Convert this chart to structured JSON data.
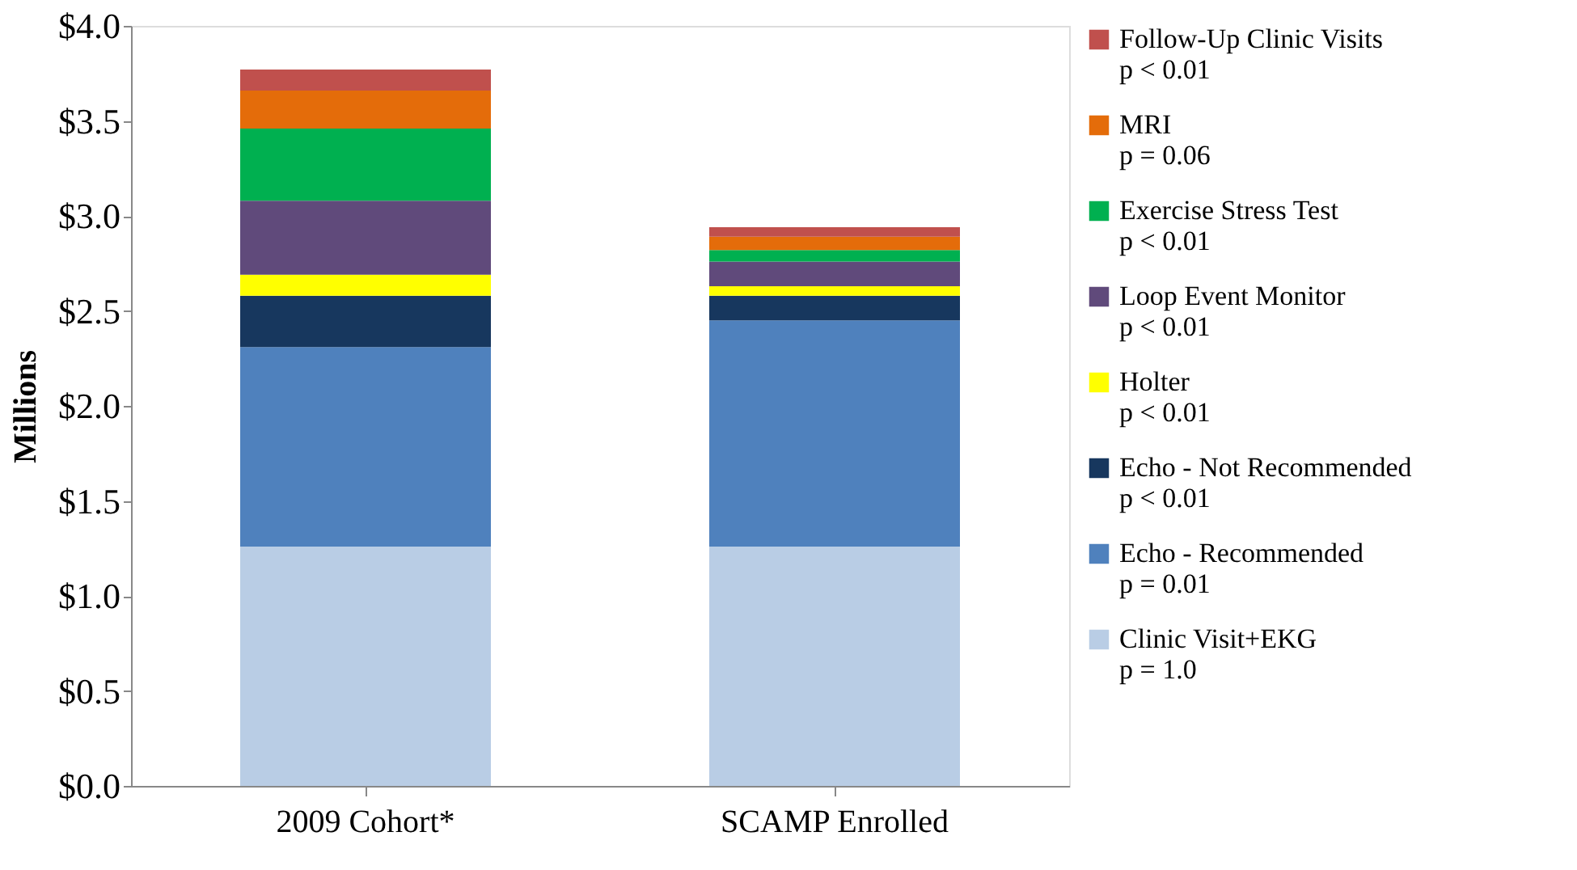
{
  "chart_data": {
    "type": "bar",
    "stacked": true,
    "ylabel": "Millions",
    "categories": [
      "2009 Cohort*",
      "SCAMP Enrolled"
    ],
    "ylim": [
      0,
      4.0
    ],
    "yticks": [
      {
        "value": 0,
        "label": "$0.0"
      },
      {
        "value": 0.5,
        "label": "$0.5"
      },
      {
        "value": 1.0,
        "label": "$1.0"
      },
      {
        "value": 1.5,
        "label": "$1.5"
      },
      {
        "value": 2.0,
        "label": "$2.0"
      },
      {
        "value": 2.5,
        "label": "$2.5"
      },
      {
        "value": 3.0,
        "label": "$3.0"
      },
      {
        "value": 3.5,
        "label": "$3.5"
      },
      {
        "value": 4.0,
        "label": "$4.0"
      }
    ],
    "grid": false,
    "legend": "right",
    "series": [
      {
        "name": "Clinic Visit+EKG\np = 1.0",
        "color": "#b9cde5",
        "values": [
          1.26,
          1.26
        ]
      },
      {
        "name": "Echo - Recommended\np = 0.01",
        "color": "#4f81bd",
        "values": [
          1.05,
          1.19
        ]
      },
      {
        "name": "Echo - Not Recommended\np < 0.01",
        "color": "#17375e",
        "values": [
          0.27,
          0.13
        ]
      },
      {
        "name": "Holter\np < 0.01",
        "color": "#ffff00",
        "values": [
          0.11,
          0.05
        ]
      },
      {
        "name": "Loop Event Monitor\np < 0.01",
        "color": "#604a7b",
        "values": [
          0.39,
          0.13
        ]
      },
      {
        "name": "Exercise Stress Test\np < 0.01",
        "color": "#00b050",
        "values": [
          0.38,
          0.06
        ]
      },
      {
        "name": "MRI\np = 0.06",
        "color": "#e46c0a",
        "values": [
          0.2,
          0.07
        ]
      },
      {
        "name": "Follow-Up Clinic Visits\np < 0.01",
        "color": "#c0504d",
        "values": [
          0.11,
          0.05
        ]
      }
    ]
  }
}
